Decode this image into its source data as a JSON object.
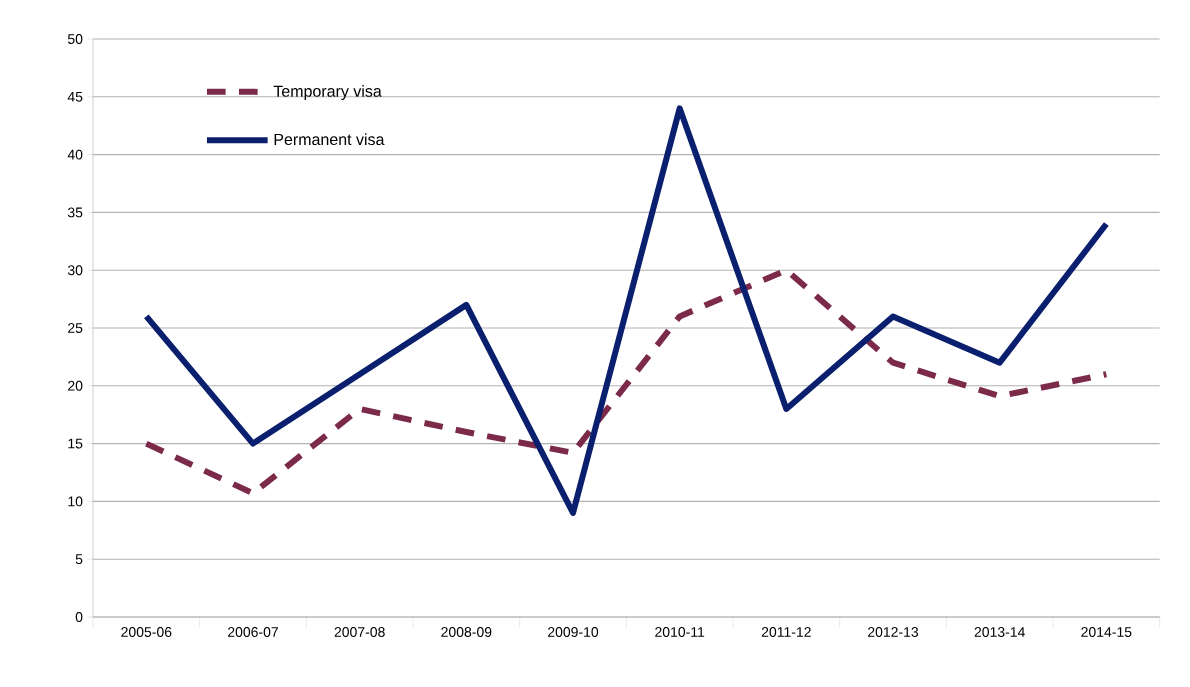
{
  "chart_data": {
    "type": "line",
    "categories": [
      "2005-06",
      "2006-07",
      "2007-08",
      "2008-09",
      "2009-10",
      "2010-11",
      "2011-12",
      "2012-13",
      "2013-14",
      "2014-15"
    ],
    "series": [
      {
        "name": "Temporary visa",
        "color": "#7b2a4a",
        "line_style": "dashed",
        "values": [
          15,
          10.7,
          18,
          16,
          14.2,
          26,
          30,
          22,
          19.1,
          21
        ]
      },
      {
        "name": "Permanent visa",
        "color": "#0a1f6e",
        "line_style": "solid",
        "values": [
          26,
          15,
          21,
          27,
          9,
          44,
          18,
          26,
          22,
          34
        ]
      }
    ],
    "ylim": [
      0,
      50
    ],
    "yticks": [
      0,
      5,
      10,
      15,
      20,
      25,
      30,
      35,
      40,
      45,
      50
    ],
    "grid": "y",
    "legend": "top left",
    "marker": "none"
  }
}
